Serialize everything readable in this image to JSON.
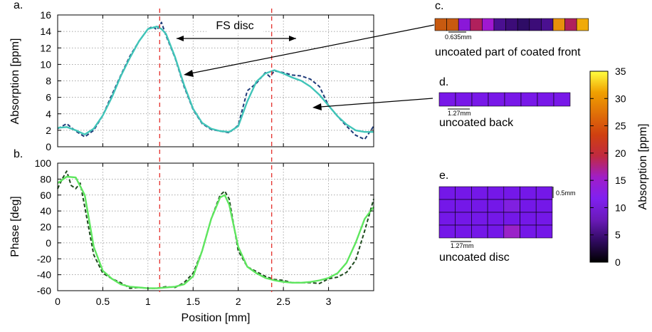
{
  "chart_data": [
    {
      "type": "line",
      "panel_label": "a.",
      "ylabel": "Absorption [ppm]",
      "xlim": [
        0,
        3.5
      ],
      "ylim": [
        0,
        16
      ],
      "yticks": [
        0,
        2,
        4,
        6,
        8,
        10,
        12,
        14,
        16
      ],
      "grid": true,
      "annotation": "FS disc",
      "series": [
        {
          "color": "#1e3a78",
          "style": "dashed",
          "x": [
            0,
            0.1,
            0.2,
            0.3,
            0.4,
            0.5,
            0.6,
            0.7,
            0.8,
            0.9,
            1.0,
            1.05,
            1.1,
            1.13,
            1.15,
            1.2,
            1.3,
            1.4,
            1.5,
            1.6,
            1.7,
            1.8,
            1.9,
            2.0,
            2.1,
            2.2,
            2.3,
            2.35,
            2.4,
            2.5,
            2.6,
            2.7,
            2.8,
            2.9,
            3.0,
            3.1,
            3.2,
            3.3,
            3.4,
            3.5
          ],
          "y": [
            2.2,
            2.8,
            1.9,
            1.2,
            2.0,
            3.8,
            6.3,
            8.7,
            11.0,
            12.8,
            14.3,
            14.6,
            14.2,
            14.7,
            15.1,
            13.5,
            10.8,
            7.3,
            4.5,
            2.8,
            2.1,
            1.9,
            1.7,
            2.6,
            6.8,
            7.7,
            9.0,
            8.5,
            9.2,
            9.0,
            8.7,
            8.6,
            8.2,
            7.3,
            5.0,
            3.7,
            2.5,
            1.4,
            0.9,
            2.5
          ]
        },
        {
          "color": "#40c4b8",
          "style": "solid",
          "x": [
            0,
            0.1,
            0.2,
            0.3,
            0.4,
            0.5,
            0.6,
            0.7,
            0.8,
            0.9,
            1.0,
            1.1,
            1.15,
            1.2,
            1.3,
            1.4,
            1.5,
            1.6,
            1.7,
            1.8,
            1.9,
            2.0,
            2.1,
            2.2,
            2.3,
            2.4,
            2.5,
            2.6,
            2.7,
            2.8,
            2.9,
            3.0,
            3.1,
            3.2,
            3.3,
            3.4,
            3.5
          ],
          "y": [
            2.3,
            2.4,
            2.0,
            1.5,
            2.2,
            3.8,
            6.0,
            8.6,
            10.8,
            12.8,
            14.3,
            14.6,
            14.3,
            13.7,
            10.9,
            7.5,
            4.6,
            2.9,
            2.2,
            1.9,
            1.8,
            2.5,
            5.5,
            7.9,
            8.9,
            9.3,
            8.9,
            8.4,
            8.0,
            7.3,
            6.3,
            5.0,
            3.7,
            2.7,
            2.0,
            1.8,
            1.8
          ]
        }
      ]
    },
    {
      "type": "line",
      "panel_label": "b.",
      "ylabel": "Phase [deg]",
      "xlabel": "Position [mm]",
      "xlim": [
        0,
        3.5
      ],
      "ylim": [
        -60,
        100
      ],
      "xticks": [
        0,
        0.5,
        1,
        1.5,
        2,
        2.5,
        3
      ],
      "xticklabels": [
        "0",
        "0.5",
        "1",
        "1.5",
        "2",
        "2.5",
        "3"
      ],
      "yticks": [
        -60,
        -40,
        -20,
        0,
        20,
        40,
        60,
        80,
        100
      ],
      "grid": true,
      "series": [
        {
          "color": "#1d4a1d",
          "style": "dashed",
          "x": [
            0,
            0.05,
            0.1,
            0.15,
            0.2,
            0.25,
            0.3,
            0.4,
            0.5,
            0.6,
            0.7,
            0.8,
            0.9,
            1.0,
            1.1,
            1.2,
            1.3,
            1.4,
            1.5,
            1.6,
            1.7,
            1.8,
            1.85,
            1.9,
            2.0,
            2.1,
            2.2,
            2.3,
            2.4,
            2.5,
            2.6,
            2.7,
            2.8,
            2.9,
            3.0,
            3.1,
            3.2,
            3.3,
            3.4,
            3.5
          ],
          "y": [
            68,
            80,
            90,
            72,
            68,
            75,
            45,
            -15,
            -38,
            -45,
            -50,
            -57,
            -56,
            -57,
            -57,
            -55,
            -56,
            -50,
            -38,
            -10,
            30,
            60,
            65,
            55,
            -10,
            -30,
            -36,
            -42,
            -46,
            -47,
            -50,
            -50,
            -50,
            -51,
            -45,
            -43,
            -37,
            -22,
            15,
            55
          ]
        },
        {
          "color": "#5ee65e",
          "style": "solid",
          "x": [
            0,
            0.1,
            0.2,
            0.3,
            0.4,
            0.5,
            0.6,
            0.7,
            0.8,
            0.9,
            1.0,
            1.1,
            1.2,
            1.3,
            1.4,
            1.5,
            1.6,
            1.7,
            1.8,
            1.85,
            1.9,
            2.0,
            2.1,
            2.2,
            2.3,
            2.4,
            2.5,
            2.6,
            2.7,
            2.8,
            2.9,
            3.0,
            3.1,
            3.2,
            3.3,
            3.4,
            3.5
          ],
          "y": [
            75,
            83,
            82,
            60,
            -5,
            -35,
            -45,
            -52,
            -55,
            -56,
            -57,
            -57,
            -56,
            -55,
            -52,
            -42,
            -10,
            30,
            57,
            60,
            48,
            -5,
            -30,
            -38,
            -44,
            -47,
            -49,
            -50,
            -50,
            -49,
            -47,
            -44,
            -38,
            -25,
            0,
            30,
            45
          ]
        }
      ],
      "vlines": {
        "x": [
          1.13,
          2.37
        ],
        "color": "#e53935",
        "style": "dashed"
      }
    }
  ],
  "insets": {
    "c": {
      "label": "c.",
      "cells": [
        "#c85a10",
        "#c85a10",
        "#8a18d8",
        "#b0205c",
        "#a018d0",
        "#4a1090",
        "#3c0c78",
        "#2e0c66",
        "#3c0c78",
        "#4a1090",
        "#e8900c",
        "#b0205c",
        "#f0aa08"
      ],
      "scale_label": "0.635mm",
      "caption": "uncoated part of coated front"
    },
    "d": {
      "label": "d.",
      "cells": [
        "#7818e8",
        "#7818e8",
        "#7818e8",
        "#7818e8",
        "#7818e8",
        "#7818e8",
        "#7818e8",
        "#7818e8"
      ],
      "scale_label": "1.27mm",
      "caption": "uncoated back"
    },
    "e": {
      "label": "e.",
      "grid_rows": [
        [
          "#7418e8",
          "#7418e8",
          "#7418e8",
          "#7418e8",
          "#7418e8",
          "#7418e8",
          "#7418e8"
        ],
        [
          "#7418e8",
          "#7418e8",
          "#7418e8",
          "#7418e8",
          "#8020e0",
          "#7418e8",
          "#7418e8"
        ],
        [
          "#7418e8",
          "#7418e8",
          "#7418e8",
          "#7418e8",
          "#7418e8",
          "#7418e8",
          "#7418e8"
        ],
        [
          "#7418e8",
          "#7418e8",
          "#7418e8",
          "#7418e8",
          "#9a22c8",
          "#7418e8",
          "#7418e8"
        ]
      ],
      "scale_label": "1.27mm",
      "side_label": "0.5mm",
      "caption": "uncoated disc"
    }
  },
  "colorbar": {
    "label": "Absorption [ppm]",
    "ticks": [
      0,
      5,
      10,
      15,
      20,
      25,
      30,
      35
    ],
    "stops": [
      "#000000",
      "#300a60",
      "#6a1ab8",
      "#8020f0",
      "#a01ec8",
      "#c02a40",
      "#d04010",
      "#e07008",
      "#f0a000",
      "#ffff40"
    ]
  }
}
